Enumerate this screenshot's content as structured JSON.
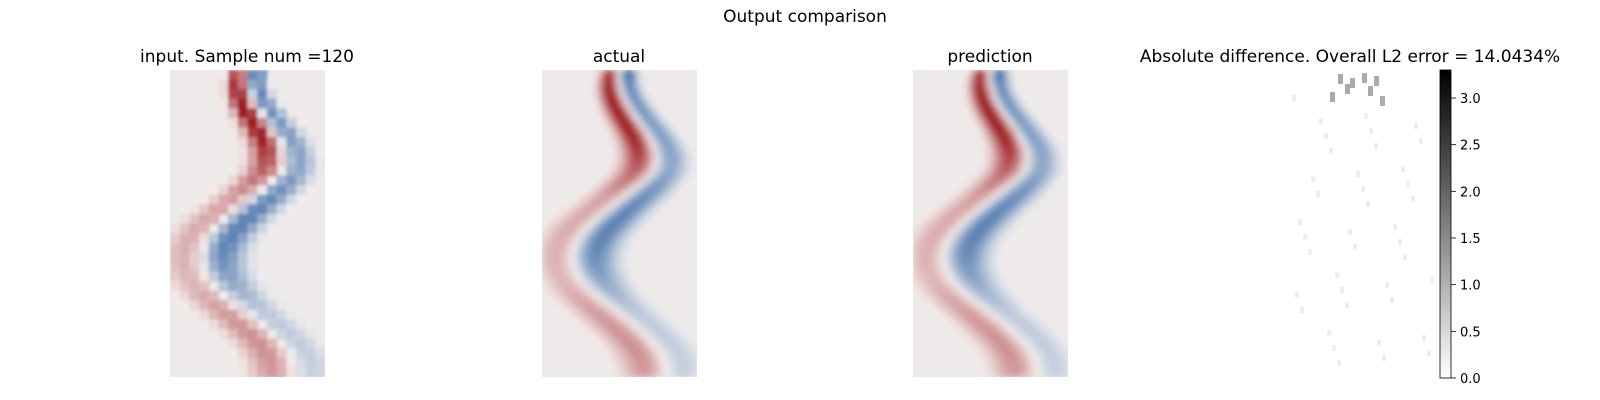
{
  "figure": {
    "suptitle": "Output comparison"
  },
  "chart_data": [
    {
      "type": "heatmap",
      "title": "input. Sample num =120",
      "colormap": "diverging red-white-blue",
      "resolution": "coarse",
      "axes_visible": false
    },
    {
      "type": "heatmap",
      "title": "actual",
      "colormap": "diverging red-white-blue",
      "resolution": "fine",
      "axes_visible": false
    },
    {
      "type": "heatmap",
      "title": "prediction",
      "colormap": "diverging red-white-blue",
      "resolution": "fine",
      "axes_visible": false
    },
    {
      "type": "heatmap",
      "title": "Absolute difference. Overall L2 error = 14.0434%",
      "colormap": "greys",
      "axes_visible": false,
      "colorbar": {
        "range": [
          0.0,
          3.3
        ],
        "ticks": [
          "0.0",
          "0.5",
          "1.0",
          "1.5",
          "2.0",
          "2.5",
          "3.0"
        ]
      }
    }
  ],
  "colors": {
    "background": "#ffffff",
    "panel_background": "#eeeae9",
    "positive": "#9e1c22",
    "negative": "#104a96",
    "neutral": "#f7f3f2"
  }
}
